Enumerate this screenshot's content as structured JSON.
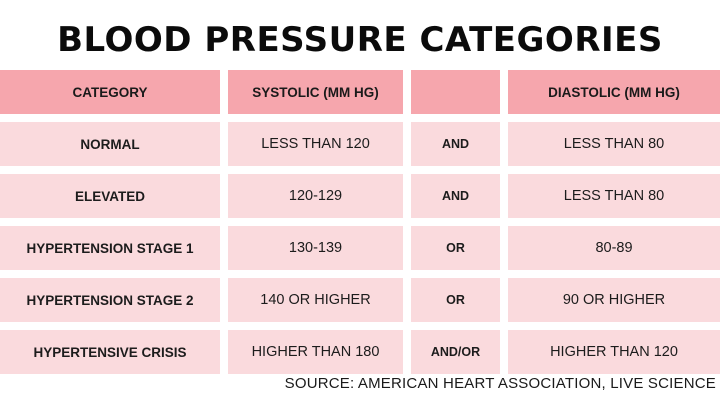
{
  "title": "BLOOD PRESSURE CATEGORIES",
  "table": {
    "headers": [
      "CATEGORY",
      "SYSTOLIC (MM HG)",
      "",
      "DIASTOLIC (MM HG)"
    ],
    "rows": [
      [
        "NORMAL",
        "LESS THAN 120",
        "AND",
        "LESS THAN 80"
      ],
      [
        "ELEVATED",
        "120-129",
        "AND",
        "LESS THAN 80"
      ],
      [
        "HYPERTENSION STAGE 1",
        "130-139",
        "OR",
        "80-89"
      ],
      [
        "HYPERTENSION STAGE 2",
        "140 OR HIGHER",
        "OR",
        "90 OR HIGHER"
      ],
      [
        "HYPERTENSIVE CRISIS",
        "HIGHER THAN 180",
        "AND/OR",
        "HIGHER THAN 120"
      ]
    ]
  },
  "source": "SOURCE: AMERICAN HEART ASSOCIATION, LIVE SCIENCE",
  "colors": {
    "header_fill": "#f6a6ad",
    "body_fill": "#fadadd",
    "text": "#111111"
  }
}
